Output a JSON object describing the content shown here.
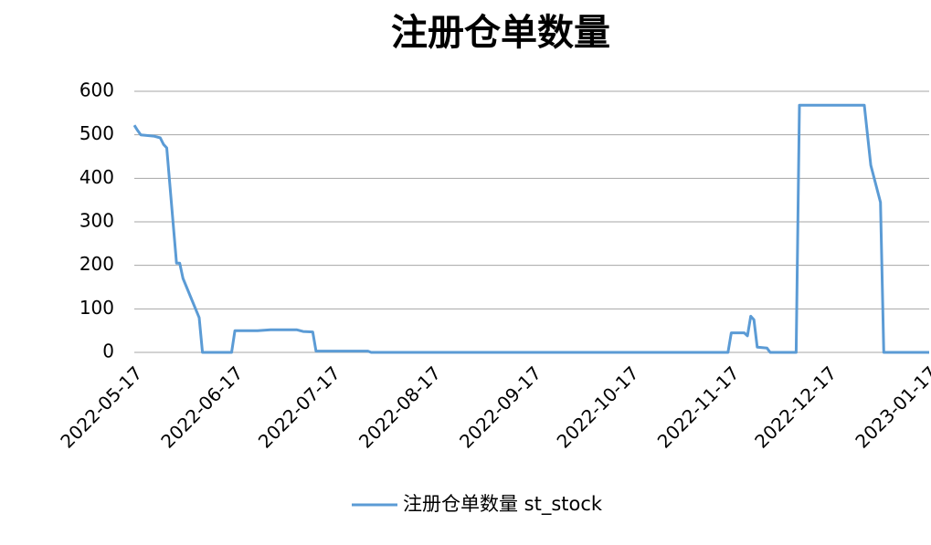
{
  "chart_data": {
    "type": "line",
    "title": "注册仓单数量",
    "x": [
      "2022-05-17",
      "2022-05-18",
      "2022-05-19",
      "2022-05-23",
      "2022-05-25",
      "2022-05-26",
      "2022-05-27",
      "2022-05-30",
      "2022-05-31",
      "2022-06-01",
      "2022-06-06",
      "2022-06-07",
      "2022-06-16",
      "2022-06-17",
      "2022-06-24",
      "2022-06-28",
      "2022-07-06",
      "2022-07-08",
      "2022-07-11",
      "2022-07-12",
      "2022-07-28",
      "2022-07-29",
      "2022-11-16",
      "2022-11-17",
      "2022-11-21",
      "2022-11-22",
      "2022-11-23",
      "2022-11-24",
      "2022-11-25",
      "2022-11-28",
      "2022-11-29",
      "2022-12-07",
      "2022-12-08",
      "2022-12-28",
      "2022-12-30",
      "2023-01-02",
      "2023-01-03",
      "2023-01-17"
    ],
    "series": [
      {
        "name": "注册仓单数量 st_stock",
        "color": "#5b9bd5",
        "values": [
          522,
          510,
          500,
          497,
          493,
          478,
          470,
          205,
          205,
          170,
          80,
          0,
          0,
          50,
          50,
          52,
          52,
          48,
          47,
          3,
          3,
          0,
          0,
          45,
          45,
          38,
          83,
          75,
          12,
          10,
          0,
          0,
          568,
          568,
          430,
          345,
          0,
          0
        ]
      }
    ],
    "xlim": [
      "2022-05-17",
      "2023-01-17"
    ],
    "xticks": [
      "2022-05-17",
      "2022-06-17",
      "2022-07-17",
      "2022-08-17",
      "2022-09-17",
      "2022-10-17",
      "2022-11-17",
      "2022-12-17",
      "2023-01-17"
    ],
    "ylim": [
      0,
      600
    ],
    "yticks": [
      0,
      100,
      200,
      300,
      400,
      500,
      600
    ],
    "grid": true,
    "legend": "bottom"
  }
}
